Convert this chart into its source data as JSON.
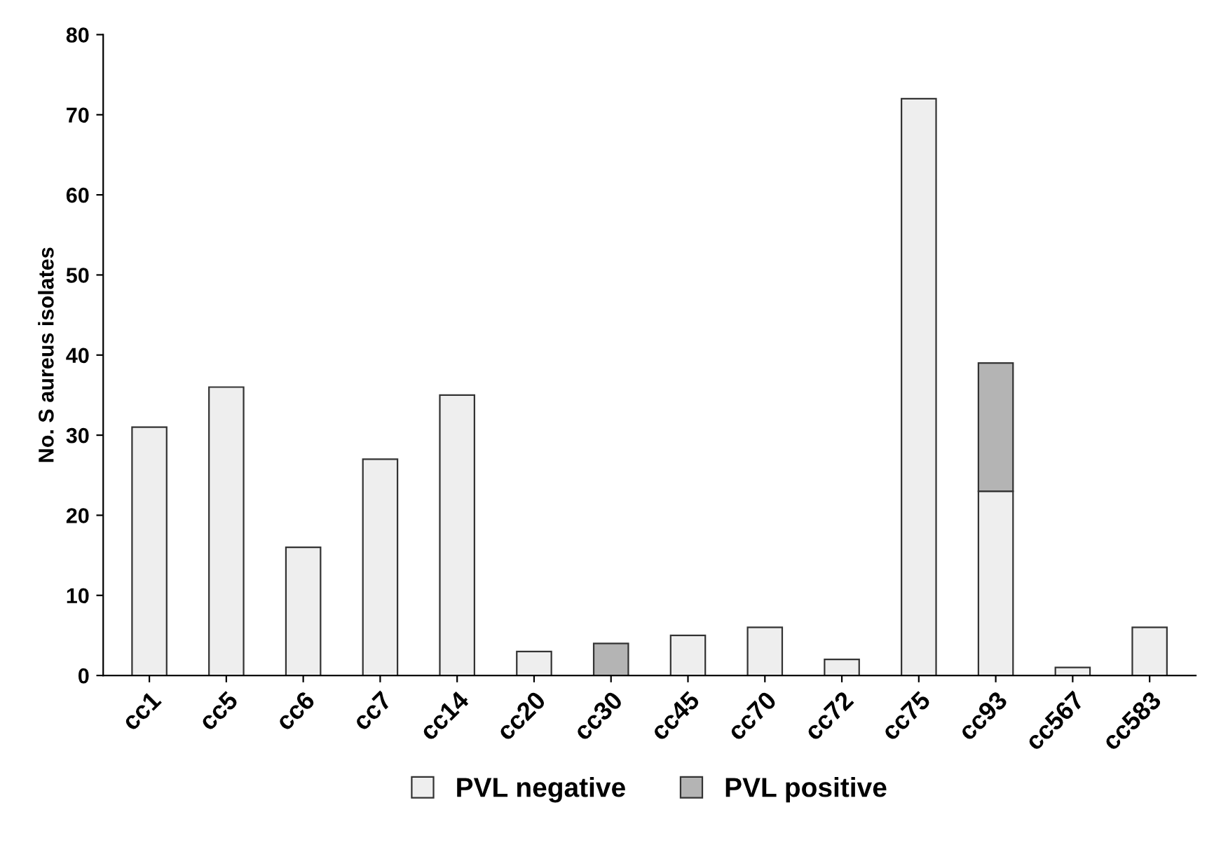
{
  "chart_data": {
    "type": "bar",
    "stacked": true,
    "ylabel": "No. S aureus isolates",
    "categories": [
      "cc1",
      "cc5",
      "cc6",
      "cc7",
      "cc14",
      "cc20",
      "cc30",
      "cc45",
      "cc70",
      "cc72",
      "cc75",
      "cc93",
      "cc567",
      "cc583"
    ],
    "series": [
      {
        "name": "PVL negative",
        "color": "#eeeeee",
        "values": [
          31,
          36,
          16,
          27,
          35,
          3,
          null,
          5,
          6,
          2,
          72,
          23,
          1,
          6
        ]
      },
      {
        "name": "PVL positive",
        "color": "#b4b4b4",
        "values": [
          null,
          null,
          null,
          null,
          null,
          null,
          4,
          null,
          null,
          null,
          null,
          16,
          null,
          null
        ]
      }
    ],
    "ylim": [
      0,
      80
    ],
    "yticks": [
      0,
      10,
      20,
      30,
      40,
      50,
      60,
      70,
      80
    ],
    "grid": false,
    "legend": "bottom"
  }
}
